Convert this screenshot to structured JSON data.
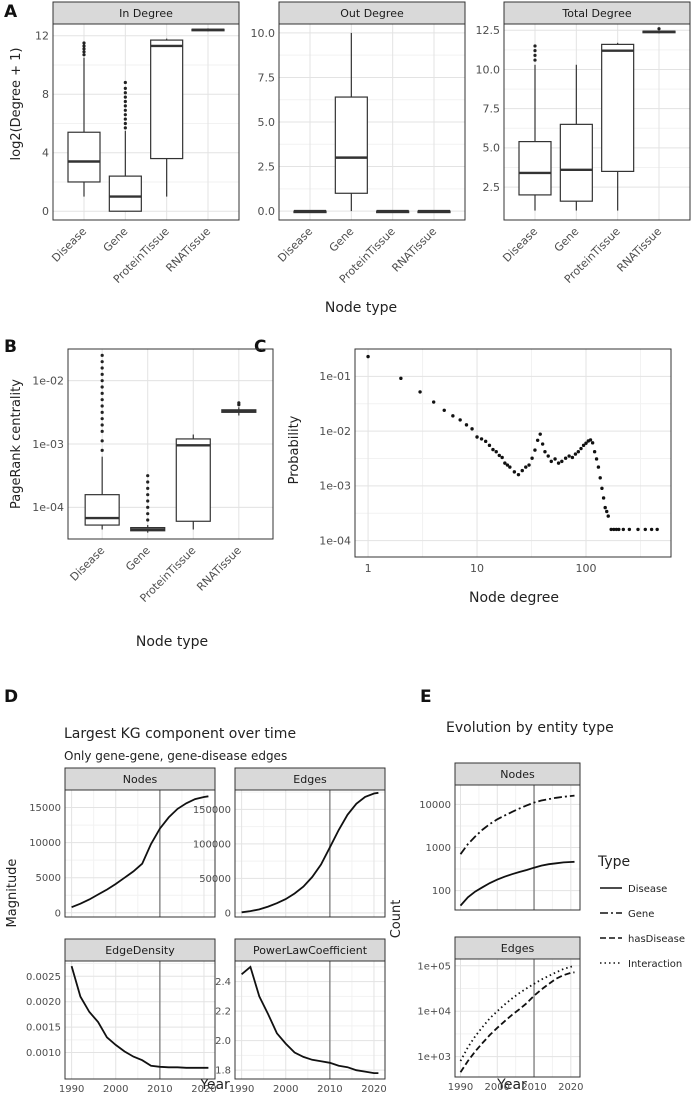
{
  "panel_letters": [
    "A",
    "B",
    "C",
    "D",
    "E"
  ],
  "chart_data": [
    {
      "id": "A",
      "type": "box",
      "ylabel": "log2(Degree + 1)",
      "xlabel": "Node type",
      "categories": [
        "Disease",
        "Gene",
        "ProteinTissue",
        "RNATissue"
      ],
      "facets": [
        {
          "title": "In Degree",
          "ylim": [
            -0.6,
            12.8
          ],
          "yticks": [
            0,
            4,
            8,
            12
          ],
          "ytick_labels": [
            "0",
            "4",
            "8",
            "12"
          ],
          "boxes": [
            {
              "q1": 2.0,
              "med": 3.4,
              "q3": 5.4,
              "lo": 1.0,
              "hi": 10.5,
              "outliers": [
                10.7,
                10.9,
                11.1,
                11.3,
                11.5
              ]
            },
            {
              "q1": 0.0,
              "med": 1.0,
              "q3": 2.4,
              "lo": 0.0,
              "hi": 5.5,
              "outliers": [
                5.7,
                6.0,
                6.3,
                6.6,
                6.9,
                7.2,
                7.5,
                7.8,
                8.1,
                8.4,
                8.8
              ]
            },
            {
              "q1": 3.6,
              "med": 11.3,
              "q3": 11.7,
              "lo": 1.0,
              "hi": 11.8,
              "outliers": []
            },
            {
              "q1": 12.36,
              "med": 12.4,
              "q3": 12.44,
              "lo": 12.3,
              "hi": 12.5,
              "outliers": []
            }
          ]
        },
        {
          "title": "Out Degree",
          "ylim": [
            -0.5,
            10.5
          ],
          "yticks": [
            0,
            2.5,
            5,
            7.5,
            10
          ],
          "ytick_labels": [
            "0.0",
            "2.5",
            "5.0",
            "7.5",
            "10.0"
          ],
          "boxes": [
            {
              "q1": 0,
              "med": 0,
              "q3": 0,
              "lo": 0,
              "hi": 0,
              "outliers": []
            },
            {
              "q1": 1.0,
              "med": 3.0,
              "q3": 6.4,
              "lo": 0.0,
              "hi": 10.0,
              "outliers": []
            },
            {
              "q1": 0,
              "med": 0,
              "q3": 0,
              "lo": 0,
              "hi": 0,
              "outliers": []
            },
            {
              "q1": 0,
              "med": 0,
              "q3": 0,
              "lo": 0,
              "hi": 0,
              "outliers": []
            }
          ]
        },
        {
          "title": "Total Degree",
          "ylim": [
            0.4,
            12.9
          ],
          "yticks": [
            2.5,
            5,
            7.5,
            10,
            12.5
          ],
          "ytick_labels": [
            "2.5",
            "5.0",
            "7.5",
            "10.0",
            "12.5"
          ],
          "boxes": [
            {
              "q1": 2.0,
              "med": 3.4,
              "q3": 5.4,
              "lo": 1.0,
              "hi": 10.3,
              "outliers": [
                10.6,
                10.9,
                11.2,
                11.5
              ]
            },
            {
              "q1": 1.6,
              "med": 3.6,
              "q3": 6.5,
              "lo": 1.0,
              "hi": 10.3,
              "outliers": []
            },
            {
              "q1": 3.5,
              "med": 11.2,
              "q3": 11.6,
              "lo": 1.0,
              "hi": 11.7,
              "outliers": []
            },
            {
              "q1": 12.36,
              "med": 12.4,
              "q3": 12.44,
              "lo": 12.3,
              "hi": 12.5,
              "outliers": [
                12.6
              ]
            }
          ]
        }
      ]
    },
    {
      "id": "B",
      "type": "box",
      "scale": "log10",
      "ylabel": "PageRank centrality",
      "xlabel": "Node type",
      "categories": [
        "Disease",
        "Gene",
        "ProteinTissue",
        "RNATissue"
      ],
      "ylim_log10": [
        -4.5,
        -1.5
      ],
      "yticks_log10": [
        -4,
        -3,
        -2
      ],
      "ytick_labels": [
        "1e-04",
        "1e-03",
        "1e-02"
      ],
      "boxes": [
        {
          "q1": -4.28,
          "med": -4.17,
          "q3": -3.8,
          "lo": -4.35,
          "hi": -3.2,
          "outliers": [
            -3.1,
            -2.95,
            -2.8,
            -2.7,
            -2.6,
            -2.5,
            -2.4,
            -2.3,
            -2.2,
            -2.1,
            -2.0,
            -1.9,
            -1.8,
            -1.7,
            -1.6
          ]
        },
        {
          "q1": -4.37,
          "med": -4.35,
          "q3": -4.32,
          "lo": -4.4,
          "hi": -4.28,
          "outliers": [
            -4.2,
            -4.1,
            -4.0,
            -3.9,
            -3.8,
            -3.7,
            -3.6,
            -3.5
          ]
        },
        {
          "q1": -4.22,
          "med": -3.02,
          "q3": -2.92,
          "lo": -4.35,
          "hi": -2.85,
          "outliers": []
        },
        {
          "q1": -2.5,
          "med": -2.48,
          "q3": -2.46,
          "lo": -2.55,
          "hi": -2.42,
          "outliers": [
            -2.38,
            -2.35
          ]
        }
      ]
    },
    {
      "id": "C",
      "type": "scatter",
      "scale": "log10-log10",
      "xlabel": "Node degree",
      "ylabel": "Probability",
      "xlim_log10": [
        -0.12,
        2.78
      ],
      "ylim_log10": [
        -4.3,
        -0.5
      ],
      "xticks": [
        1,
        10,
        100
      ],
      "xtick_labels": [
        "1",
        "10",
        "100"
      ],
      "yticks_log10": [
        -4,
        -3,
        -2,
        -1
      ],
      "ytick_labels": [
        "1e-04",
        "1e-03",
        "1e-02",
        "1e-01"
      ],
      "x": [
        1,
        2,
        3,
        4,
        5,
        6,
        7,
        8,
        9,
        10,
        11,
        12,
        13,
        14,
        15,
        16,
        17,
        18,
        19,
        20,
        22,
        24,
        26,
        28,
        30,
        32,
        34,
        36,
        38,
        40,
        42,
        45,
        48,
        52,
        56,
        60,
        65,
        70,
        75,
        80,
        85,
        90,
        95,
        100,
        105,
        110,
        115,
        120,
        125,
        130,
        135,
        140,
        145,
        150,
        155,
        160,
        170,
        180,
        190,
        200,
        220,
        250,
        300,
        350,
        400,
        450
      ],
      "y": [
        0.23,
        0.092,
        0.052,
        0.034,
        0.024,
        0.019,
        0.016,
        0.013,
        0.011,
        0.0078,
        0.0072,
        0.0065,
        0.0055,
        0.0046,
        0.0042,
        0.0036,
        0.0033,
        0.0026,
        0.0024,
        0.0022,
        0.0018,
        0.0016,
        0.0019,
        0.0022,
        0.0024,
        0.0032,
        0.0045,
        0.0068,
        0.0088,
        0.0058,
        0.0042,
        0.0035,
        0.0028,
        0.0031,
        0.0026,
        0.0028,
        0.0032,
        0.0035,
        0.0033,
        0.0038,
        0.0042,
        0.0048,
        0.0055,
        0.006,
        0.0066,
        0.0069,
        0.0061,
        0.0042,
        0.0031,
        0.0022,
        0.0014,
        0.0009,
        0.0006,
        0.0004,
        0.00034,
        0.00028,
        0.00016,
        0.00016,
        0.00016,
        0.00016,
        0.00016,
        0.00016,
        0.00016,
        0.00016,
        0.00016,
        0.00016
      ]
    },
    {
      "id": "D",
      "type": "line",
      "title": "Largest KG component over time",
      "subtitle": "Only gene-gene, gene-disease edges",
      "ylabel": "Magnitude",
      "xlabel": "Year",
      "xlim": [
        1988.5,
        2022.5
      ],
      "xticks": [
        1990,
        2000,
        2010,
        2020
      ],
      "vline": 2010,
      "x": [
        1990,
        1992,
        1994,
        1996,
        1998,
        2000,
        2002,
        2004,
        2006,
        2008,
        2010,
        2012,
        2014,
        2016,
        2018,
        2020,
        2021
      ],
      "facets": [
        {
          "title": "Nodes",
          "ylim": [
            -600,
            17500
          ],
          "yticks": [
            0,
            5000,
            10000,
            15000
          ],
          "ytick_labels": [
            "0",
            "5000",
            "10000",
            "15000"
          ],
          "y": [
            800,
            1300,
            1900,
            2600,
            3300,
            4100,
            5000,
            5900,
            7000,
            9800,
            12000,
            13600,
            14800,
            15600,
            16200,
            16500,
            16600
          ]
        },
        {
          "title": "Edges",
          "ylim": [
            -6000,
            178000
          ],
          "yticks": [
            0,
            50000,
            100000,
            150000
          ],
          "ytick_labels": [
            "0",
            "50000",
            "100000",
            "150000"
          ],
          "y": [
            800,
            2500,
            5000,
            9000,
            14000,
            20000,
            28000,
            38000,
            52000,
            70000,
            95000,
            120000,
            142000,
            158000,
            168000,
            173000,
            174000
          ]
        },
        {
          "title": "EdgeDensity",
          "ylim": [
            0.00048,
            0.0028
          ],
          "yticks": [
            0.001,
            0.0015,
            0.002,
            0.0025
          ],
          "ytick_labels": [
            "0.0010",
            "0.0015",
            "0.0020",
            "0.0025"
          ],
          "y": [
            0.0027,
            0.0021,
            0.0018,
            0.0016,
            0.0013,
            0.00115,
            0.00102,
            0.00092,
            0.00085,
            0.00074,
            0.00072,
            0.00071,
            0.00071,
            0.0007,
            0.0007,
            0.0007,
            0.0007
          ]
        },
        {
          "title": "PowerLawCoefficient",
          "ylim": [
            1.74,
            2.54
          ],
          "yticks": [
            1.8,
            2.0,
            2.2,
            2.4
          ],
          "ytick_labels": [
            "1.8",
            "2.0",
            "2.2",
            "2.4"
          ],
          "y": [
            2.45,
            2.5,
            2.3,
            2.18,
            2.05,
            1.98,
            1.92,
            1.89,
            1.87,
            1.86,
            1.85,
            1.83,
            1.82,
            1.8,
            1.79,
            1.78,
            1.78
          ]
        }
      ]
    },
    {
      "id": "E",
      "type": "line",
      "scale": "log10",
      "title": "Evolution by entity type",
      "ylabel": "Count",
      "xlabel": "Year",
      "xlim": [
        1988.5,
        2022.5
      ],
      "xticks": [
        1990,
        2000,
        2010,
        2020
      ],
      "vline": 2010,
      "legend": {
        "title": "Type",
        "position": "right",
        "entries": [
          "Disease",
          "Gene",
          "hasDisease",
          "Interaction"
        ]
      },
      "x": [
        1990,
        1992,
        1994,
        1996,
        1998,
        2000,
        2002,
        2004,
        2006,
        2008,
        2010,
        2012,
        2014,
        2016,
        2018,
        2020,
        2021
      ],
      "facets": [
        {
          "title": "Nodes",
          "ylim_log10": [
            1.55,
            4.45
          ],
          "yticks_log10": [
            2,
            3,
            4
          ],
          "ytick_labels": [
            "100",
            "1000",
            "10000"
          ],
          "series": [
            {
              "name": "Disease",
              "y": [
                45,
                70,
                95,
                120,
                150,
                180,
                210,
                240,
                270,
                300,
                340,
                380,
                410,
                430,
                450,
                460,
                465
              ]
            },
            {
              "name": "Gene",
              "y": [
                700,
                1200,
                1800,
                2600,
                3500,
                4500,
                5500,
                6700,
                8000,
                9500,
                11000,
                12300,
                13300,
                14200,
                15000,
                15700,
                16000
              ]
            }
          ]
        },
        {
          "title": "Edges",
          "ylim_log10": [
            2.55,
            5.15
          ],
          "yticks_log10": [
            3,
            4,
            5
          ],
          "ytick_labels": [
            "1e+03",
            "1e+04",
            "1e+05"
          ],
          "series": [
            {
              "name": "hasDisease",
              "y": [
                450,
                800,
                1300,
                2000,
                3000,
                4300,
                6000,
                8300,
                11000,
                15000,
                22000,
                30000,
                40000,
                52000,
                62000,
                70000,
                72000
              ]
            },
            {
              "name": "Interaction",
              "y": [
                800,
                1600,
                2800,
                4500,
                7000,
                10000,
                14000,
                19000,
                25000,
                32000,
                40000,
                50000,
                60000,
                72000,
                85000,
                95000,
                100000
              ]
            }
          ]
        }
      ]
    }
  ]
}
